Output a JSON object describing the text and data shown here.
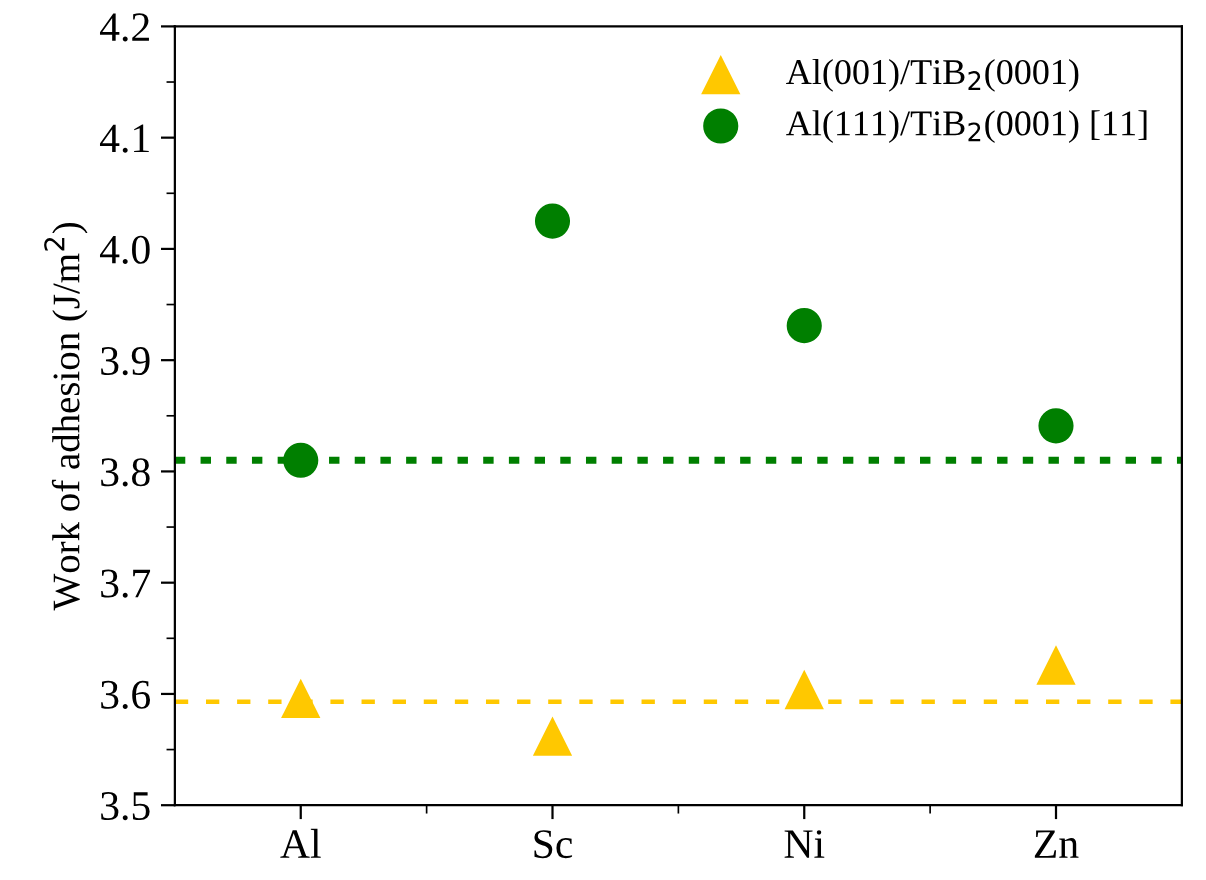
{
  "chart_data": {
    "type": "scatter",
    "ylabel": "Work of adhesion (J/m$^{2}$)",
    "categories": [
      "Al",
      "Sc",
      "Ni",
      "Zn"
    ],
    "series": [
      {
        "name": "Al(001)/TiB$_{2}$(0001)",
        "color": "#ffc800",
        "marker": "triangle",
        "values": [
          3.596,
          3.562,
          3.604,
          3.626
        ]
      },
      {
        "name": "Al(111)/TiB$_{2}$(0001) [11]",
        "color": "#007f00",
        "marker": "circle",
        "values": [
          3.81,
          4.025,
          3.931,
          3.841
        ]
      }
    ],
    "ref_lines": [
      {
        "axis": "y",
        "value": 3.593,
        "color": "#ffc800",
        "line_style": "dashed"
      },
      {
        "axis": "y",
        "value": 3.81,
        "color": "#007f00",
        "line_style": "dotted"
      }
    ],
    "ylim": [
      3.5,
      4.2
    ],
    "yticks": [
      {
        "value": 3.5,
        "label": "3.5"
      },
      {
        "value": 3.6,
        "label": "3.6"
      },
      {
        "value": 3.7,
        "label": "3.7"
      },
      {
        "value": 3.8,
        "label": "3.8"
      },
      {
        "value": 3.9,
        "label": "3.9"
      },
      {
        "value": 4.0,
        "label": "4.0"
      },
      {
        "value": 4.1,
        "label": "4.1"
      },
      {
        "value": 4.2,
        "label": "4.2"
      }
    ],
    "grid": false,
    "legend": "top right"
  }
}
